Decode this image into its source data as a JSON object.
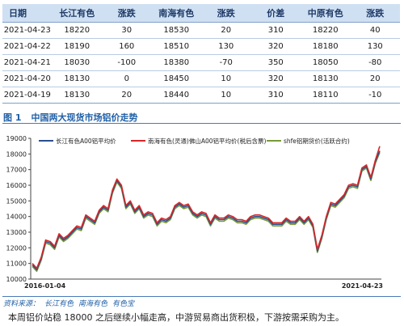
{
  "table": {
    "headers": [
      "日期",
      "长江有色",
      "涨跌",
      "南海有色",
      "涨跌",
      "价差",
      "中原有色",
      "涨跌"
    ],
    "rows": [
      [
        "2021-04-23",
        "18220",
        "30",
        "18530",
        "20",
        "310",
        "18220",
        "40"
      ],
      [
        "2021-04-22",
        "18190",
        "160",
        "18510",
        "130",
        "320",
        "18180",
        "130"
      ],
      [
        "2021-04-21",
        "18030",
        "-100",
        "18380",
        "-70",
        "350",
        "18050",
        "-80"
      ],
      [
        "2021-04-20",
        "18130",
        "0",
        "18450",
        "10",
        "320",
        "18130",
        "20"
      ],
      [
        "2021-04-19",
        "18130",
        "20",
        "18440",
        "10",
        "310",
        "18110",
        "-10"
      ]
    ]
  },
  "figure": {
    "number": "图 1",
    "title": "中国两大现货市场铝价走势"
  },
  "source": {
    "label": "资料来源：",
    "items": [
      "长江有色",
      "南海有色",
      "有色宝"
    ]
  },
  "summary": "本周铝价站稳 18000 之后继续小幅走高，中游贸易商出货积极，下游按需采购为主。",
  "colors": {
    "series_blue": "#2a4f8f",
    "series_red": "#d62728",
    "series_green": "#7a9a3a",
    "header_bg": "#cfe0f2",
    "caption": "#1f5fa6"
  },
  "chart_data": {
    "type": "line",
    "x_start_label": "2016-01-04",
    "x_end_label": "2021-04-23",
    "ylim": [
      10000,
      19000
    ],
    "yticks": [
      "10000",
      "11000",
      "12000",
      "13000",
      "14000",
      "15000",
      "16000",
      "17000",
      "18000",
      "19000"
    ],
    "grid": false,
    "legend_position": "top",
    "series": [
      {
        "name": "长江有色A00铝平均价",
        "color": "#2a4f8f",
        "values": [
          10900,
          10600,
          11300,
          12400,
          12300,
          12000,
          12800,
          12500,
          12700,
          13000,
          13300,
          13200,
          14000,
          13800,
          13600,
          14300,
          14600,
          14400,
          15600,
          16300,
          15900,
          14600,
          14900,
          14300,
          14600,
          14000,
          14200,
          14100,
          13500,
          13800,
          13700,
          13900,
          14600,
          14800,
          14600,
          14700,
          14200,
          14000,
          14200,
          14100,
          13500,
          14000,
          13800,
          13800,
          14000,
          13900,
          13700,
          13700,
          13600,
          13900,
          14000,
          14000,
          13900,
          13800,
          13500,
          13500,
          13500,
          13800,
          13600,
          13600,
          13900,
          13600,
          13900,
          13400,
          11800,
          12700,
          13900,
          14800,
          14700,
          15000,
          15300,
          15900,
          16000,
          15900,
          17000,
          17200,
          16400,
          17500,
          18200
        ]
      },
      {
        "name": "南海有色(灵通)佛山A00铝平均价(税后含票)",
        "color": "#d62728",
        "values": [
          11000,
          10700,
          11400,
          12500,
          12400,
          12100,
          12900,
          12600,
          12800,
          13100,
          13400,
          13300,
          14100,
          13900,
          13700,
          14400,
          14700,
          14500,
          15700,
          16400,
          16000,
          14700,
          15000,
          14400,
          14700,
          14100,
          14300,
          14200,
          13600,
          13900,
          13800,
          14000,
          14700,
          14900,
          14700,
          14800,
          14300,
          14100,
          14300,
          14200,
          13600,
          14100,
          13900,
          13900,
          14100,
          14000,
          13800,
          13800,
          13700,
          14000,
          14100,
          14100,
          14000,
          13900,
          13600,
          13600,
          13600,
          13900,
          13700,
          13700,
          14000,
          13700,
          14000,
          13500,
          11900,
          12800,
          14000,
          14900,
          14800,
          15100,
          15400,
          16000,
          16100,
          16000,
          17100,
          17300,
          16500,
          17600,
          18500
        ]
      },
      {
        "name": "shfe铝期货价(活跃合约)",
        "color": "#7a9a3a",
        "values": [
          10800,
          10500,
          11200,
          12300,
          12200,
          11900,
          12700,
          12400,
          12600,
          12900,
          13200,
          13100,
          13900,
          13700,
          13500,
          14200,
          14500,
          14300,
          15500,
          16200,
          15800,
          14500,
          14800,
          14200,
          14500,
          13900,
          14100,
          14000,
          13400,
          13700,
          13600,
          13800,
          14500,
          14700,
          14500,
          14600,
          14100,
          13900,
          14100,
          14000,
          13400,
          13900,
          13700,
          13700,
          13900,
          13800,
          13600,
          13600,
          13500,
          13800,
          13900,
          13900,
          13800,
          13700,
          13400,
          13400,
          13400,
          13700,
          13500,
          13500,
          13800,
          13500,
          13800,
          13300,
          11700,
          12600,
          13800,
          14700,
          14600,
          14900,
          15200,
          15800,
          15900,
          15800,
          16900,
          17100,
          16300,
          17400,
          18100
        ]
      }
    ]
  }
}
